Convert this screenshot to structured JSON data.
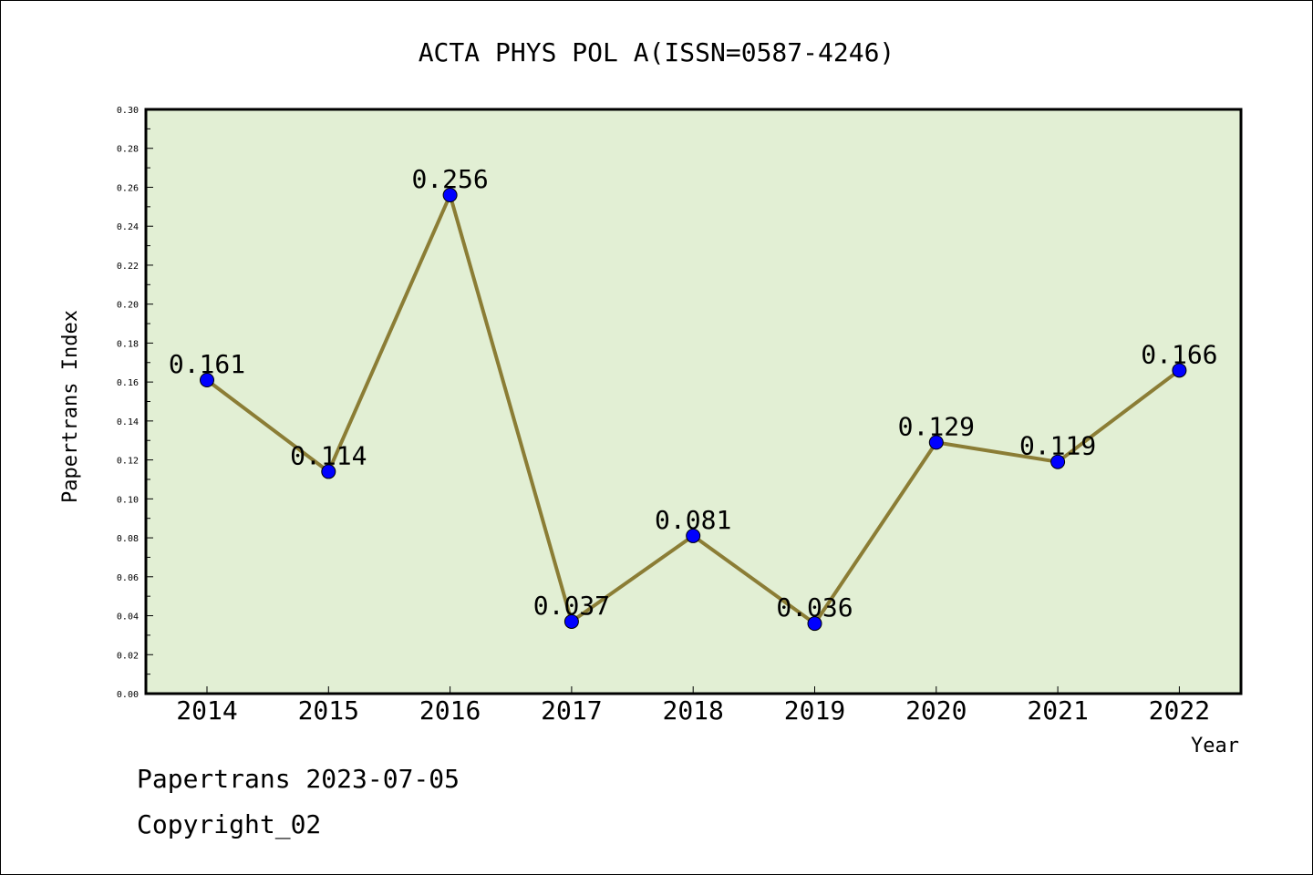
{
  "chart_data": {
    "type": "line",
    "title": "ACTA PHYS POL A(ISSN=0587-4246)",
    "xlabel": "Year",
    "ylabel": "Papertrans Index",
    "categories": [
      "2014",
      "2015",
      "2016",
      "2017",
      "2018",
      "2019",
      "2020",
      "2021",
      "2022"
    ],
    "values": [
      0.161,
      0.114,
      0.256,
      0.037,
      0.081,
      0.036,
      0.129,
      0.119,
      0.166
    ],
    "data_labels": [
      "0.161",
      "0.114",
      "0.256",
      "0.037",
      "0.081",
      "0.036",
      "0.129",
      "0.119",
      "0.166"
    ],
    "ylim": [
      0,
      0.3
    ],
    "yticks": [
      "0.00",
      "0.02",
      "0.04",
      "0.06",
      "0.08",
      "0.10",
      "0.12",
      "0.14",
      "0.16",
      "0.18",
      "0.20",
      "0.22",
      "0.24",
      "0.26",
      "0.28",
      "0.30"
    ],
    "grid": false,
    "legend": "none",
    "colors": {
      "plot_background": "#e2efd4",
      "line": "#8b7d35",
      "marker": "#0000ff"
    }
  },
  "footer": {
    "line1": "Papertrans 2023-07-05",
    "line2": "Copyright_02"
  }
}
